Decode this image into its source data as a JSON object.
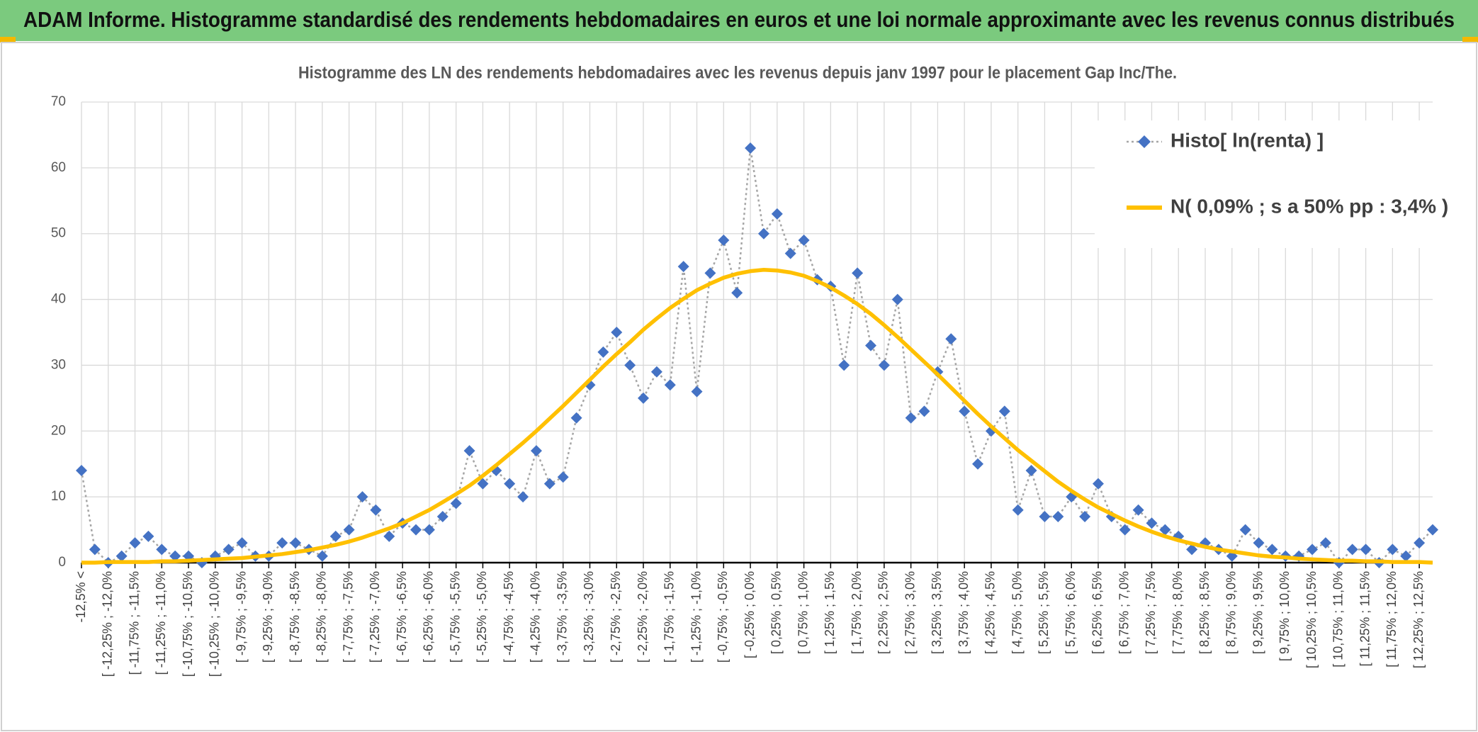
{
  "header": {
    "title": "ADAM Informe. Histogramme standardisé des rendements hebdomadaires en euros et une loi normale approximante avec les revenus connus distribués"
  },
  "chart_data": {
    "type": "line",
    "title": "Histogramme des LN des rendements hebdomadaires avec les revenus depuis janv 1997 pour le placement Gap Inc/The.",
    "categories": [
      "-12,5% <",
      null,
      "[ -12,25% ; -12,0%",
      null,
      "[ -11,75% ; -11,5%",
      null,
      "[ -11,25% ; -11,0%",
      null,
      "[ -10,75% ; -10,5%",
      null,
      "[ -10,25% ; -10,0%",
      null,
      "[ -9,75% ; -9,5%",
      null,
      "[ -9,25% ; -9,0%",
      null,
      "[ -8,75% ; -8,5%",
      null,
      "[ -8,25% ; -8,0%",
      null,
      "[ -7,75% ; -7,5%",
      null,
      "[ -7,25% ; -7,0%",
      null,
      "[ -6,75% ; -6,5%",
      null,
      "[ -6,25% ; -6,0%",
      null,
      "[ -5,75% ; -5,5%",
      null,
      "[ -5,25% ; -5,0%",
      null,
      "[ -4,75% ; -4,5%",
      null,
      "[ -4,25% ; -4,0%",
      null,
      "[ -3,75% ; -3,5%",
      null,
      "[ -3,25% ; -3,0%",
      null,
      "[ -2,75% ; -2,5%",
      null,
      "[ -2,25% ; -2,0%",
      null,
      "[ -1,75% ; -1,5%",
      null,
      "[ -1,25% ; -1,0%",
      null,
      "[ -0,75% ; -0,5%",
      null,
      "[ -0,25% ; 0,0%",
      null,
      "[ 0,25% ; 0,5%",
      null,
      "[ 0,75% ; 1,0%",
      null,
      "[ 1,25% ; 1,5%",
      null,
      "[ 1,75% ; 2,0%",
      null,
      "[ 2,25% ; 2,5%",
      null,
      "[ 2,75% ; 3,0%",
      null,
      "[ 3,25% ; 3,5%",
      null,
      "[ 3,75% ; 4,0%",
      null,
      "[ 4,25% ; 4,5%",
      null,
      "[ 4,75% ; 5,0%",
      null,
      "[ 5,25% ; 5,5%",
      null,
      "[ 5,75% ; 6,0%",
      null,
      "[ 6,25% ; 6,5%",
      null,
      "[ 6,75% ; 7,0%",
      null,
      "[ 7,25% ; 7,5%",
      null,
      "[ 7,75% ; 8,0%",
      null,
      "[ 8,25% ; 8,5%",
      null,
      "[ 8,75% ; 9,0%",
      null,
      "[ 9,25% ; 9,5%",
      null,
      "[ 9,75% ; 10,0%",
      null,
      "[ 10,25% ; 10,5%",
      null,
      "[ 10,75% ; 11,0%",
      null,
      "[ 11,25% ; 11,5%",
      null,
      "[ 11,75% ; 12,0%",
      null,
      "[ 12,25% ; 12,5%",
      null
    ],
    "series": [
      {
        "name": "Histo[ ln(renta) ]",
        "color": "#4472c4",
        "line_color": "#a6a6a6",
        "marker": "diamond",
        "values": [
          14,
          2,
          0,
          1,
          3,
          4,
          2,
          1,
          1,
          0,
          1,
          2,
          3,
          1,
          1,
          3,
          3,
          2,
          1,
          4,
          5,
          10,
          8,
          4,
          6,
          5,
          5,
          7,
          9,
          17,
          12,
          14,
          12,
          10,
          17,
          12,
          13,
          22,
          27,
          32,
          35,
          30,
          25,
          29,
          27,
          45,
          26,
          44,
          49,
          41,
          63,
          50,
          53,
          47,
          49,
          43,
          42,
          30,
          44,
          33,
          30,
          40,
          22,
          23,
          29,
          34,
          23,
          15,
          20,
          23,
          8,
          14,
          7,
          7,
          10,
          7,
          12,
          7,
          5,
          8,
          6,
          5,
          4,
          2,
          3,
          2,
          1,
          5,
          3,
          2,
          1,
          1,
          2,
          3,
          0,
          2,
          2,
          0,
          2,
          1,
          3,
          5
        ]
      },
      {
        "name": "N( 0,09% ; s a 50% pp : 3,4% )",
        "color": "#ffc000",
        "values": [
          0.0,
          0.0,
          0.1,
          0.1,
          0.1,
          0.1,
          0.2,
          0.2,
          0.3,
          0.4,
          0.5,
          0.6,
          0.7,
          0.9,
          1.1,
          1.3,
          1.6,
          1.9,
          2.3,
          2.7,
          3.2,
          3.8,
          4.5,
          5.2,
          6.0,
          7.0,
          8.0,
          9.2,
          10.4,
          11.7,
          13.2,
          14.8,
          16.5,
          18.2,
          20.0,
          21.9,
          23.8,
          25.8,
          27.8,
          29.8,
          31.7,
          33.5,
          35.4,
          37.1,
          38.7,
          40.1,
          41.4,
          42.4,
          43.3,
          43.9,
          44.3,
          44.5,
          44.4,
          44.1,
          43.6,
          42.8,
          41.8,
          40.6,
          39.3,
          37.8,
          36.1,
          34.3,
          32.4,
          30.5,
          28.6,
          26.6,
          24.6,
          22.6,
          20.7,
          18.9,
          17.1,
          15.5,
          13.9,
          12.3,
          10.9,
          9.6,
          8.4,
          7.4,
          6.4,
          5.5,
          4.7,
          4.0,
          3.4,
          2.9,
          2.4,
          2.0,
          1.7,
          1.4,
          1.1,
          0.9,
          0.8,
          0.6,
          0.5,
          0.4,
          0.3,
          0.3,
          0.2,
          0.2,
          0.1,
          0.1,
          0.1,
          0.0
        ]
      }
    ],
    "ylim": [
      0,
      70
    ],
    "yticks": [
      0,
      10,
      20,
      30,
      40,
      50,
      60,
      70
    ],
    "grid": true,
    "legend": "top-right"
  }
}
